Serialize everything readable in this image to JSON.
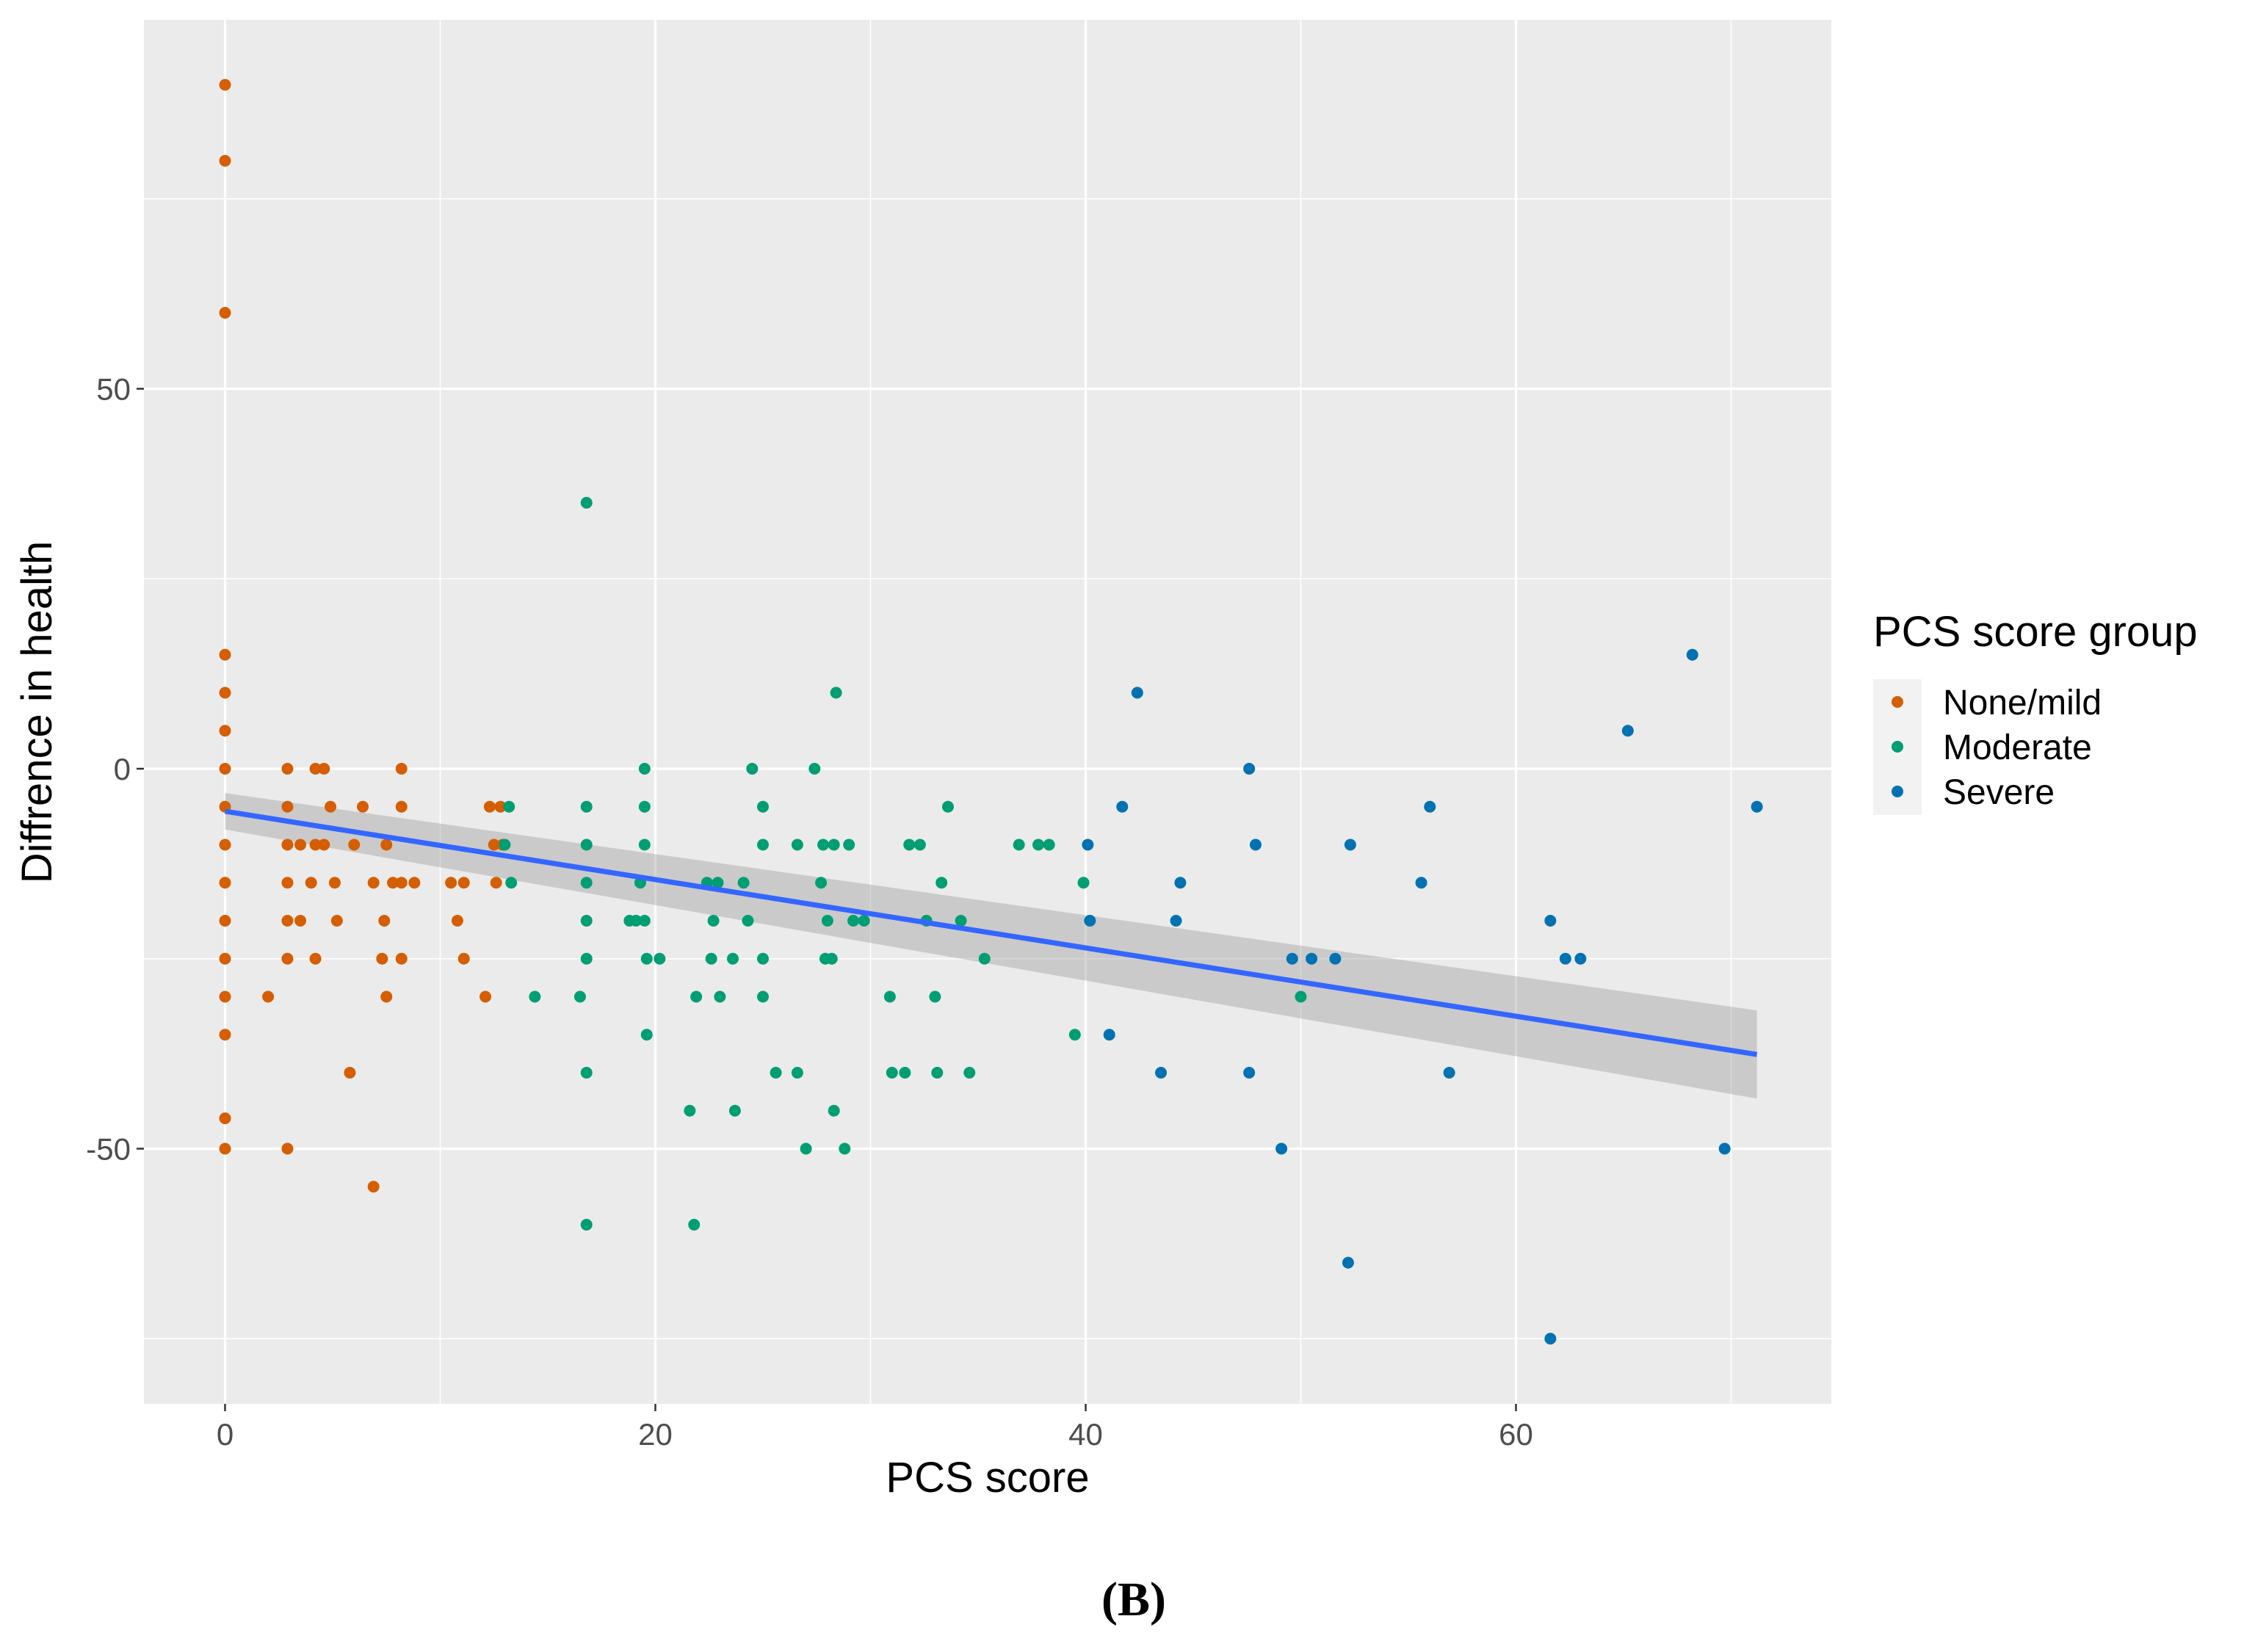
{
  "chart_data": {
    "type": "scatter",
    "xlabel": "PCS score",
    "ylabel": "Diffrence in health",
    "xlim": [
      -3.7,
      74.7
    ],
    "ylim": [
      -83.5,
      98.5
    ],
    "xticks": [
      0,
      20,
      40,
      60
    ],
    "xtick_labels": [
      "0",
      "20",
      "40",
      "60"
    ],
    "yticks": [
      -50,
      0,
      50
    ],
    "ytick_labels": [
      "-50",
      "0",
      "50"
    ],
    "grid": true,
    "legend_title": "PCS score group",
    "legend_position": "right",
    "panel_label": "(B)",
    "series": [
      {
        "name": "None/mild",
        "color": "#d55e00",
        "points": [
          [
            0,
            90
          ],
          [
            0,
            80
          ],
          [
            0,
            60
          ],
          [
            0,
            15
          ],
          [
            0,
            10
          ],
          [
            0,
            5
          ],
          [
            0,
            0
          ],
          [
            0,
            -5
          ],
          [
            0,
            -10
          ],
          [
            0,
            -15
          ],
          [
            0,
            -20
          ],
          [
            0,
            -25
          ],
          [
            0,
            -30
          ],
          [
            0,
            -35
          ],
          [
            0,
            -46
          ],
          [
            0,
            -50
          ],
          [
            2,
            -30
          ],
          [
            2.9,
            0
          ],
          [
            2.9,
            -5
          ],
          [
            2.9,
            -10
          ],
          [
            2.9,
            -15
          ],
          [
            2.9,
            -20
          ],
          [
            2.9,
            -25
          ],
          [
            2.9,
            -50
          ],
          [
            3.5,
            -10
          ],
          [
            3.5,
            -20
          ],
          [
            4,
            -15
          ],
          [
            4.2,
            0
          ],
          [
            4.2,
            -10
          ],
          [
            4.2,
            -25
          ],
          [
            4.6,
            0
          ],
          [
            4.6,
            -10
          ],
          [
            4.9,
            -5
          ],
          [
            5.1,
            -15
          ],
          [
            5.2,
            -20
          ],
          [
            5.8,
            -40
          ],
          [
            6,
            -10
          ],
          [
            6.4,
            -5
          ],
          [
            6.9,
            -55
          ],
          [
            6.9,
            -15
          ],
          [
            7.3,
            -25
          ],
          [
            7.4,
            -20
          ],
          [
            7.5,
            -30
          ],
          [
            7.5,
            -10
          ],
          [
            7.8,
            -15
          ],
          [
            8.2,
            0
          ],
          [
            8.2,
            -5
          ],
          [
            8.2,
            -15
          ],
          [
            8.2,
            -25
          ],
          [
            8.8,
            -15
          ],
          [
            10.5,
            -15
          ],
          [
            10.8,
            -20
          ],
          [
            11.1,
            -15
          ],
          [
            11.1,
            -25
          ],
          [
            12.1,
            -30
          ],
          [
            12.3,
            -5
          ],
          [
            12.5,
            -10
          ],
          [
            12.6,
            -15
          ],
          [
            12.8,
            -5
          ],
          [
            12.9,
            -10
          ]
        ]
      },
      {
        "name": "Moderate",
        "color": "#009e73",
        "points": [
          [
            13,
            -10
          ],
          [
            13.2,
            -5
          ],
          [
            13.3,
            -15
          ],
          [
            14.4,
            -30
          ],
          [
            16.5,
            -30
          ],
          [
            16.8,
            35
          ],
          [
            16.8,
            -5
          ],
          [
            16.8,
            -10
          ],
          [
            16.8,
            -15
          ],
          [
            16.8,
            -20
          ],
          [
            16.8,
            -25
          ],
          [
            16.8,
            -40
          ],
          [
            16.8,
            -60
          ],
          [
            18.8,
            -20
          ],
          [
            19.1,
            -20
          ],
          [
            19.3,
            -15
          ],
          [
            19.5,
            0
          ],
          [
            19.5,
            -5
          ],
          [
            19.5,
            -10
          ],
          [
            19.5,
            -20
          ],
          [
            19.6,
            -25
          ],
          [
            19.6,
            -35
          ],
          [
            20.2,
            -25
          ],
          [
            21.6,
            -45
          ],
          [
            21.8,
            -60
          ],
          [
            21.9,
            -30
          ],
          [
            22.4,
            -15
          ],
          [
            22.6,
            -25
          ],
          [
            22.7,
            -20
          ],
          [
            22.9,
            -15
          ],
          [
            23,
            -30
          ],
          [
            23.6,
            -25
          ],
          [
            23.7,
            -45
          ],
          [
            24.1,
            -15
          ],
          [
            24.3,
            -20
          ],
          [
            24.5,
            0
          ],
          [
            25,
            -5
          ],
          [
            25,
            -10
          ],
          [
            25,
            -25
          ],
          [
            25,
            -30
          ],
          [
            25.6,
            -40
          ],
          [
            26.6,
            -40
          ],
          [
            26.6,
            -10
          ],
          [
            27,
            -50
          ],
          [
            27.4,
            0
          ],
          [
            27.7,
            -15
          ],
          [
            27.8,
            -10
          ],
          [
            27.9,
            -25
          ],
          [
            28,
            -20
          ],
          [
            28.2,
            -25
          ],
          [
            28.3,
            -45
          ],
          [
            28.3,
            -10
          ],
          [
            28.4,
            10
          ],
          [
            28.8,
            -50
          ],
          [
            29,
            -10
          ],
          [
            29.2,
            -20
          ],
          [
            29.7,
            -20
          ],
          [
            30.9,
            -30
          ],
          [
            31,
            -40
          ],
          [
            31.6,
            -40
          ],
          [
            31.8,
            -10
          ],
          [
            32.3,
            -10
          ],
          [
            32.6,
            -20
          ],
          [
            33,
            -30
          ],
          [
            33.1,
            -40
          ],
          [
            33.3,
            -15
          ],
          [
            33.6,
            -5
          ],
          [
            34.2,
            -20
          ],
          [
            34.6,
            -40
          ],
          [
            35.3,
            -25
          ],
          [
            36.9,
            -10
          ],
          [
            37.8,
            -10
          ],
          [
            38.3,
            -10
          ],
          [
            39.5,
            -35
          ],
          [
            39.9,
            -15
          ],
          [
            50,
            -30
          ]
        ]
      },
      {
        "name": "Severe",
        "color": "#0072b2",
        "points": [
          [
            40.1,
            -10
          ],
          [
            40.2,
            -20
          ],
          [
            41.1,
            -35
          ],
          [
            41.7,
            -5
          ],
          [
            42.4,
            10
          ],
          [
            43.5,
            -40
          ],
          [
            44.2,
            -20
          ],
          [
            44.4,
            -15
          ],
          [
            47.6,
            0
          ],
          [
            47.6,
            -40
          ],
          [
            47.9,
            -10
          ],
          [
            49.1,
            -50
          ],
          [
            49.6,
            -25
          ],
          [
            50.5,
            -25
          ],
          [
            51.6,
            -25
          ],
          [
            52.2,
            -65
          ],
          [
            52.3,
            -10
          ],
          [
            55.6,
            -15
          ],
          [
            56,
            -5
          ],
          [
            56.9,
            -40
          ],
          [
            61.6,
            -20
          ],
          [
            61.6,
            -75
          ],
          [
            62.3,
            -25
          ],
          [
            63,
            -25
          ],
          [
            65.2,
            5
          ],
          [
            68.2,
            15
          ],
          [
            69.7,
            -50
          ],
          [
            71.2,
            -5
          ]
        ]
      }
    ],
    "trend_line": {
      "name": "linear fit",
      "color": "#3366ff",
      "x": [
        0,
        71.2
      ],
      "y": [
        -5.6,
        -37.6
      ],
      "ci_lower": [
        -8.0,
        -43.4
      ],
      "ci_upper": [
        -3.2,
        -31.8
      ],
      "ci_color": "#999999"
    }
  }
}
